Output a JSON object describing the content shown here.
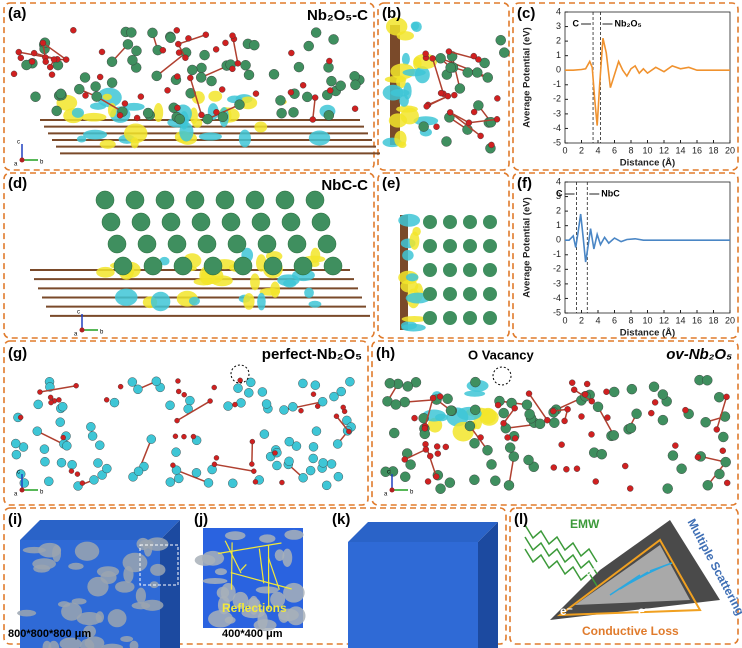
{
  "panels": [
    {
      "label": "(a)",
      "title": "Nb₂O₅-C"
    },
    {
      "label": "(b)"
    },
    {
      "label": "(c)"
    },
    {
      "label": "(d)",
      "title": "NbC-C"
    },
    {
      "label": "(e)"
    },
    {
      "label": "(f)"
    },
    {
      "label": "(g)",
      "title": "perfect-Nb₂O₅"
    },
    {
      "label": "(h)",
      "title": "ov-Nb₂O₅",
      "note": "O Vacancy"
    },
    {
      "label": "(i)",
      "note": "800*800*800 μm"
    },
    {
      "label": "(j)",
      "note": "Reflections",
      "scale": "400*400 μm"
    },
    {
      "label": "(k)"
    },
    {
      "label": "(l)",
      "notes": [
        "EMW",
        "Multiple Scattering",
        "Conductive Loss",
        "e⁻"
      ]
    }
  ],
  "axis_letters": [
    "c",
    "b",
    "a"
  ],
  "chart_data": [
    {
      "type": "line",
      "ylabel": "Average Potential (eV)",
      "xlabel": "Distance (Å)",
      "xlim": [
        0,
        20
      ],
      "ylim": [
        -5,
        4
      ],
      "xticks": [
        0,
        2,
        4,
        6,
        8,
        10,
        12,
        14,
        16,
        18,
        20
      ],
      "yticks": [
        -5,
        -4,
        -3,
        -2,
        -1,
        0,
        1,
        2,
        3,
        4
      ],
      "annotations": [
        "C",
        "Nb₂O₅"
      ],
      "vlines": [
        3.4,
        4.3
      ],
      "series": [
        {
          "color": "#f0922e",
          "x": [
            0,
            1,
            2,
            2.5,
            3,
            3.3,
            3.6,
            3.9,
            4.2,
            4.6,
            5,
            5.5,
            6,
            6.5,
            7,
            7.5,
            8,
            8.5,
            9,
            9.5,
            10,
            11,
            12,
            13,
            14,
            15,
            16,
            17,
            18,
            19,
            20
          ],
          "values": [
            0,
            0,
            0.05,
            0.1,
            0.6,
            0.2,
            -2,
            -3.8,
            -1,
            2.2,
            1.2,
            -1.2,
            -0.3,
            0.6,
            0,
            -0.4,
            0.1,
            0.3,
            -0.2,
            0.1,
            -0.2,
            0.2,
            -0.1,
            0.3,
            0.1,
            0.2,
            0,
            0,
            0,
            0,
            0
          ]
        }
      ]
    },
    {
      "type": "line",
      "ylabel": "Average Potential (eV)",
      "xlabel": "Distance (Å)",
      "xlim": [
        0,
        20
      ],
      "ylim": [
        -5,
        4
      ],
      "xticks": [
        0,
        2,
        4,
        6,
        8,
        10,
        12,
        14,
        16,
        18,
        20
      ],
      "yticks": [
        -5,
        -4,
        -3,
        -2,
        -1,
        0,
        1,
        2,
        3,
        4
      ],
      "annotations": [
        "C",
        "NbC"
      ],
      "vlines": [
        1.4,
        2.7
      ],
      "series": [
        {
          "color": "#4a86c5",
          "x": [
            0,
            0.5,
            1,
            1.3,
            1.6,
            1.9,
            2.2,
            2.5,
            2.8,
            3.1,
            3.5,
            3.9,
            4.3,
            4.8,
            5.3,
            6,
            6.8,
            7.5,
            8.5,
            9.5,
            10,
            12,
            14,
            16,
            18,
            20
          ],
          "values": [
            0,
            0,
            0.3,
            -0.5,
            0.6,
            1.8,
            0.2,
            -1.5,
            -0.4,
            0.8,
            -0.6,
            0.4,
            -0.3,
            0.2,
            -0.2,
            0.15,
            -0.1,
            0.05,
            0.1,
            0,
            0,
            0,
            0,
            0,
            0,
            0
          ]
        }
      ]
    }
  ]
}
